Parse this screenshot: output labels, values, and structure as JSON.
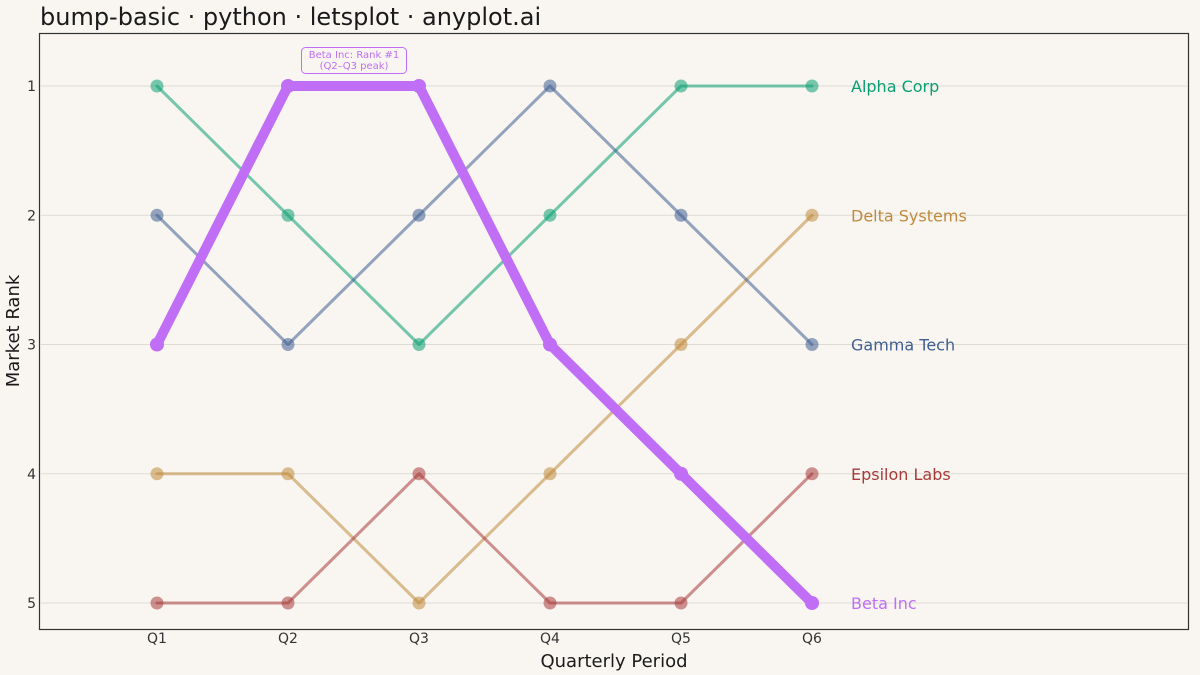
{
  "chart_data": {
    "type": "line",
    "title": "bump-basic · python · letsplot · anyplot.ai",
    "xlabel": "Quarterly Period",
    "ylabel": "Market Rank",
    "categories": [
      "Q1",
      "Q2",
      "Q3",
      "Q4",
      "Q5",
      "Q6"
    ],
    "yticks": [
      1,
      2,
      3,
      4,
      5
    ],
    "ylim": [
      5.2,
      0.6
    ],
    "y_reversed": true,
    "grid": "horizontal",
    "series": [
      {
        "name": "Alpha Corp",
        "values": [
          1,
          2,
          3,
          2,
          1,
          1
        ],
        "color": "#0b9e73",
        "highlight": false
      },
      {
        "name": "Delta Systems",
        "values": [
          4,
          4,
          5,
          4,
          3,
          2
        ],
        "color": "#bf8a3c",
        "highlight": false
      },
      {
        "name": "Gamma Tech",
        "values": [
          2,
          3,
          2,
          1,
          2,
          3
        ],
        "color": "#3f5f93",
        "highlight": false
      },
      {
        "name": "Epsilon Labs",
        "values": [
          5,
          5,
          4,
          5,
          5,
          4
        ],
        "color": "#a83a3a",
        "highlight": false
      },
      {
        "name": "Beta Inc",
        "values": [
          3,
          1,
          1,
          3,
          4,
          5
        ],
        "color": "#bf6ef5",
        "highlight": true
      }
    ],
    "annotation": {
      "lines": [
        "Beta Inc: Rank #1",
        "(Q2–Q3 peak)"
      ],
      "color": "#bf6ef5"
    }
  }
}
